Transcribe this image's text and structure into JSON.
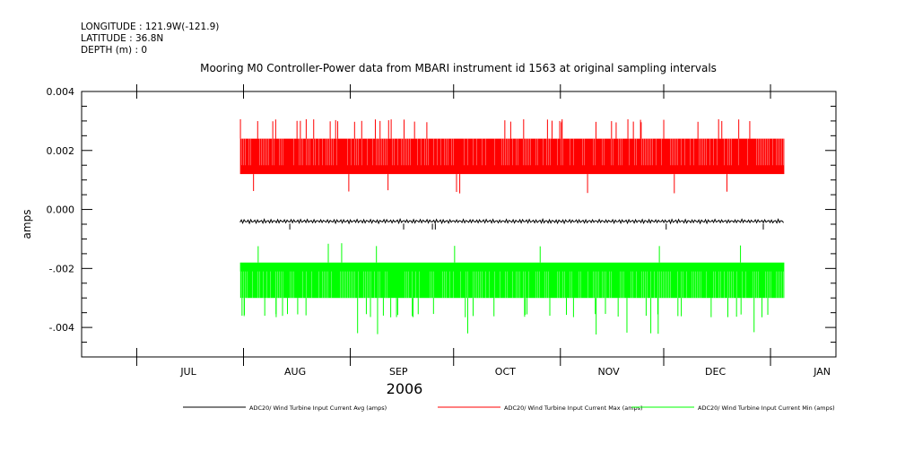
{
  "header": {
    "longitude": "LONGITUDE : 121.9W(-121.9)",
    "latitude": "LATITUDE : 36.8N",
    "depth": "DEPTH (m) : 0"
  },
  "chart_data": {
    "type": "line",
    "title": "Mooring M0 Controller-Power data from MBARI instrument id 1563 at original sampling intervals",
    "xlabel": "2006",
    "ylabel": "amps",
    "xlim": [
      "2006-06-15",
      "2007-01-20"
    ],
    "ylim": [
      -0.005,
      0.004
    ],
    "x_tick_labels": [
      "JUL",
      "AUG",
      "SEP",
      "OCT",
      "NOV",
      "DEC",
      "JAN"
    ],
    "y_tick_labels": [
      "0.004",
      "0.002",
      "0.000",
      "-.002",
      "-.004"
    ],
    "y_tick_values": [
      0.004,
      0.002,
      0.0,
      -0.002,
      -0.004
    ],
    "grid": false,
    "legend": "bottom",
    "data_start": "2006-07-31",
    "data_end": "2007-01-05",
    "series": [
      {
        "name": "ADC20/ Wind Turbine Input Current Avg (amps)",
        "color": "#000000",
        "band": [
          -0.00048,
          -0.00032
        ],
        "spikes": [
          -0.00068
        ]
      },
      {
        "name": "ADC20/ Wind Turbine Input Current Max (amps)",
        "color": "#ff0000",
        "band": [
          0.0012,
          0.0024
        ],
        "spikes": [
          0.003,
          0.0006
        ]
      },
      {
        "name": "ADC20/ Wind Turbine Input Current Min (amps)",
        "color": "#00ff00",
        "band": [
          -0.003,
          -0.0018
        ],
        "spikes": [
          -0.0036,
          -0.0042,
          -0.0012
        ]
      }
    ]
  }
}
